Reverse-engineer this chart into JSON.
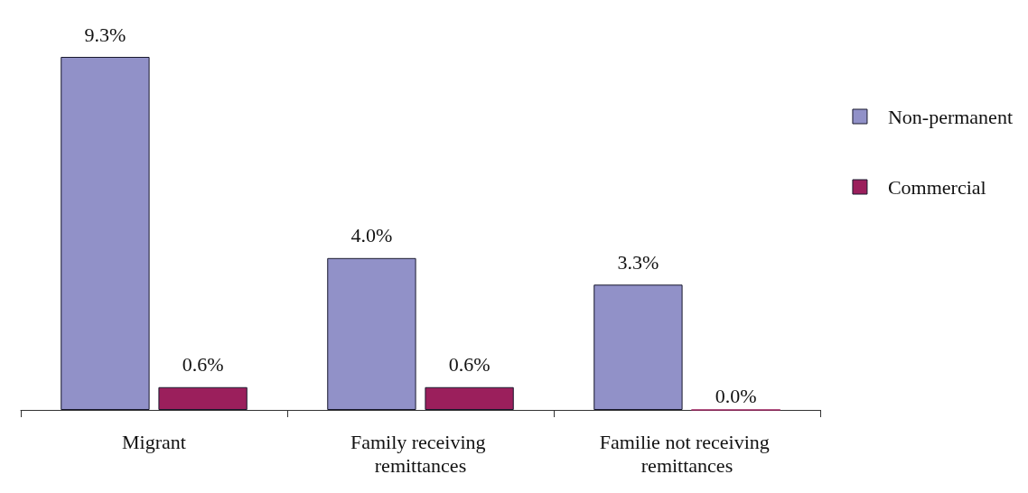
{
  "chart_data": {
    "type": "bar",
    "categories": [
      "Migrant",
      "Family receiving remittances",
      "Familie not receiving remittances"
    ],
    "series": [
      {
        "name": "Non-permanent",
        "color": "#9191c8",
        "values": [
          9.3,
          4.0,
          3.3
        ],
        "value_labels": [
          "9.3%",
          "4.0%",
          "3.3%"
        ]
      },
      {
        "name": "Commercial",
        "color": "#9b1f5c",
        "values": [
          0.6,
          0.6,
          0.0
        ],
        "value_labels": [
          "0.6%",
          "0.6%",
          "0.0%"
        ]
      }
    ],
    "legend": "top right"
  }
}
